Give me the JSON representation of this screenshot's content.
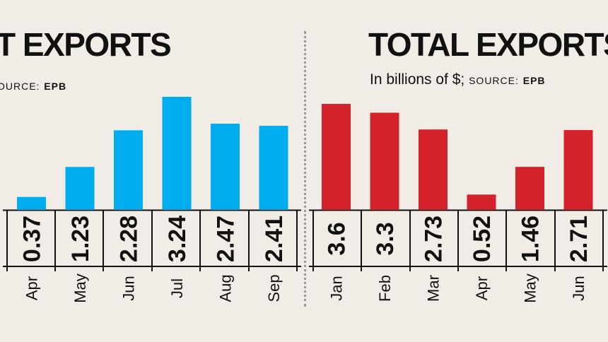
{
  "left_panel": {
    "title": "T EXPORTS",
    "source_label": "OURCE:",
    "source_org": "EPB"
  },
  "right_panel": {
    "title": "TOTAL EXPORTS",
    "subtitle": "In billions of $;",
    "source_label": "SOURCE:",
    "source_org": "EPB"
  },
  "chart_data": [
    {
      "type": "bar",
      "title": "T EXPORTS",
      "categories": [
        "Apr",
        "May",
        "Jun",
        "Jul",
        "Aug",
        "Sep"
      ],
      "values": [
        0.37,
        1.23,
        2.28,
        3.24,
        2.47,
        2.41
      ],
      "value_labels": [
        "0.37",
        "1.23",
        "2.28",
        "3.24",
        "2.47",
        "2.41"
      ],
      "color": "#00aeef",
      "ylim": [
        0,
        3.24
      ],
      "grid": false
    },
    {
      "type": "bar",
      "title": "TOTAL EXPORTS",
      "subtitle": "In billions of $;",
      "categories": [
        "Jan",
        "Feb",
        "Mar",
        "Apr",
        "May",
        "Jun"
      ],
      "values": [
        3.6,
        3.3,
        2.73,
        0.52,
        1.46,
        2.71
      ],
      "value_labels": [
        "3.6",
        "3.3",
        "2.73",
        "0.52",
        "1.46",
        "2.71"
      ],
      "color": "#d3222a",
      "ylim": [
        0,
        3.6
      ],
      "grid": false
    }
  ]
}
